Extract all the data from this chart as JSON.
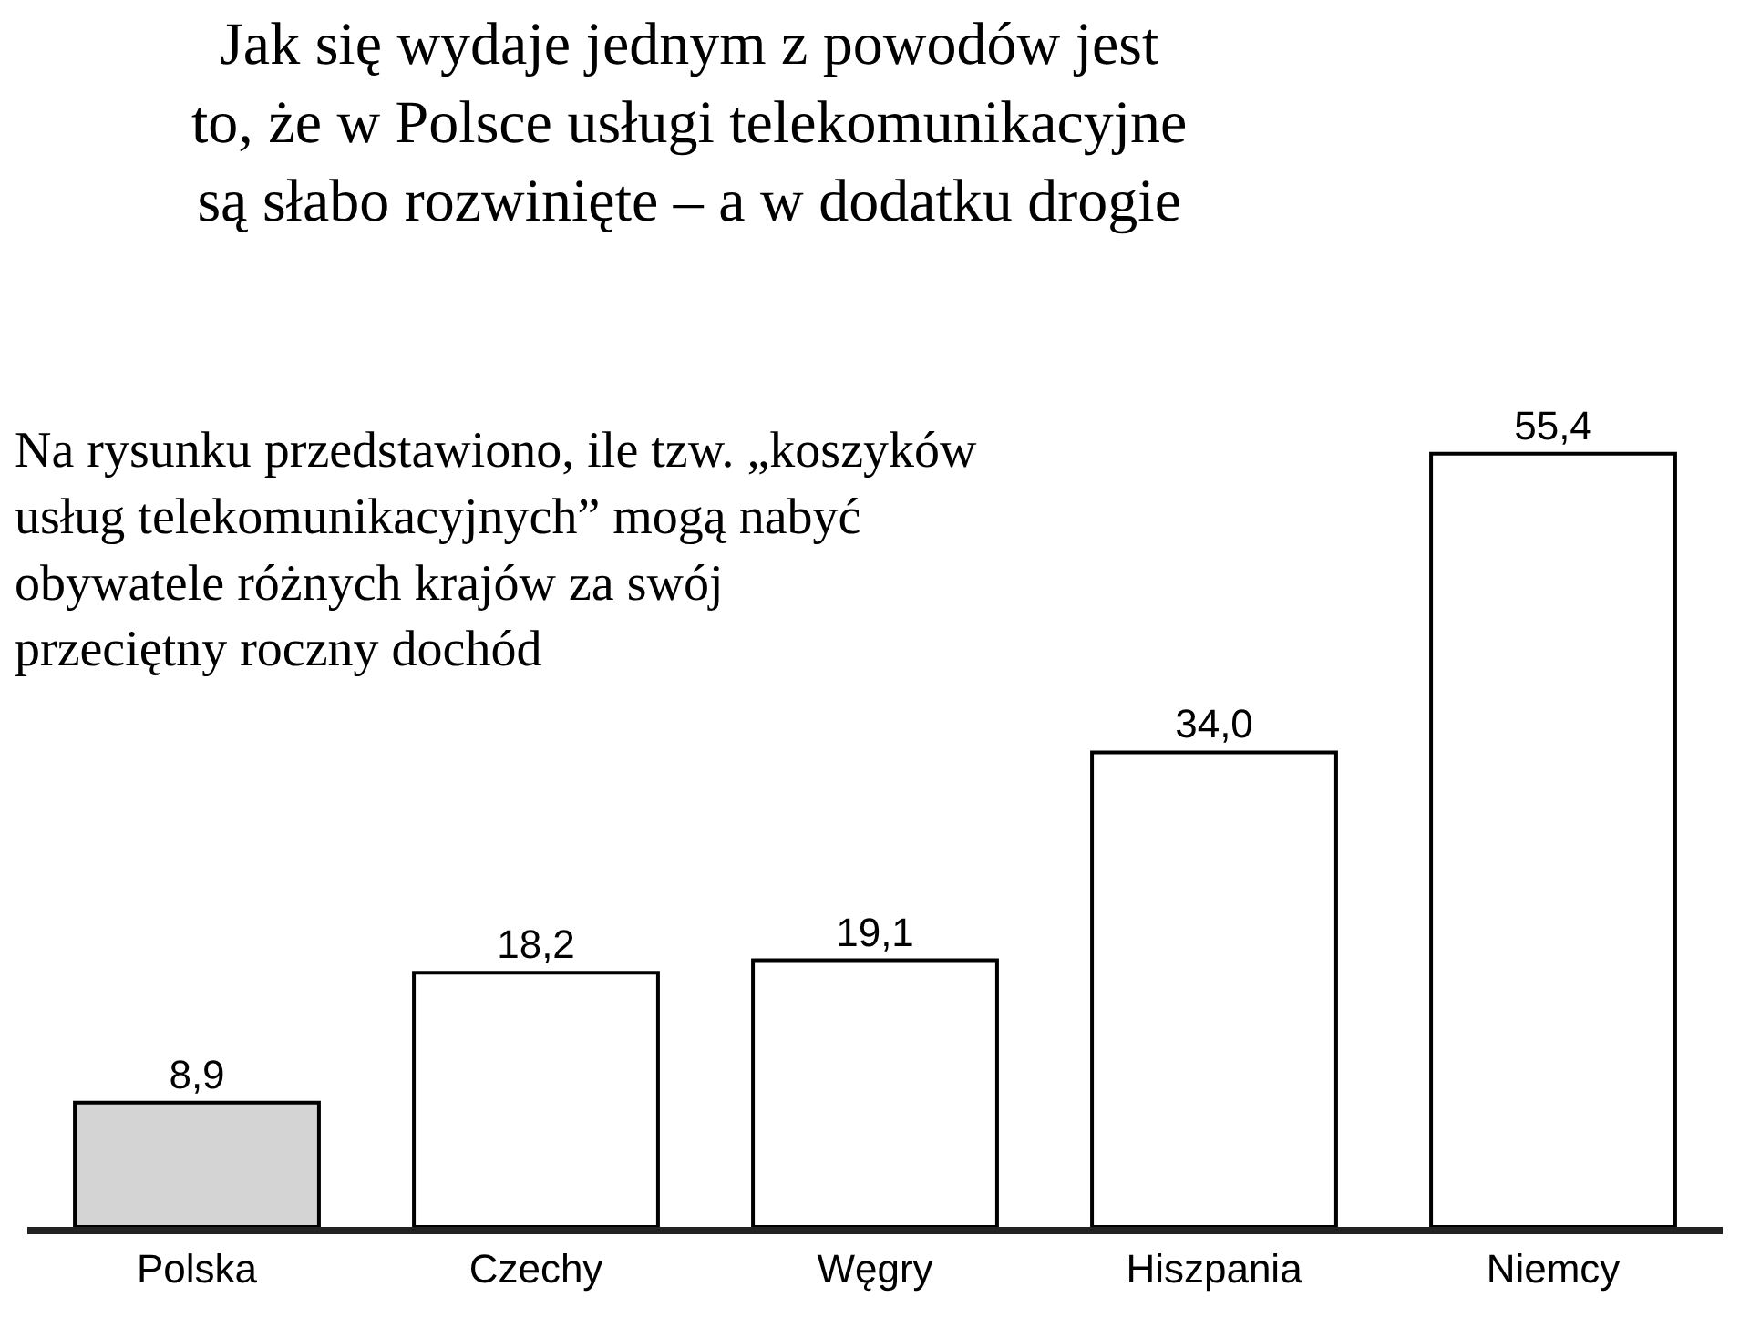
{
  "chart_data": {
    "type": "bar",
    "title": "Jak się wydaje jednym z powodów jest\nto, że w Polsce usługi telekomunikacyjne\nsą słabo rozwinięte – a w dodatku drogie",
    "subtitle": "Na rysunku przedstawiono, ile tzw. „koszyków\nusług telekomunikacyjnych” mogą nabyć\nobywatele różnych krajów za swój\nprzeciętny roczny dochód",
    "categories": [
      "Polska",
      "Czechy",
      "Węgry",
      "Hiszpania",
      "Niemcy"
    ],
    "values": [
      8.9,
      18.2,
      19.1,
      34.0,
      55.4
    ],
    "value_labels": [
      "8,9",
      "18,2",
      "19,1",
      "34,0",
      "55,4"
    ],
    "colors": [
      "#d4d4d4",
      "#ffffff",
      "#ffffff",
      "#ffffff",
      "#ffffff"
    ],
    "legend": false
  }
}
